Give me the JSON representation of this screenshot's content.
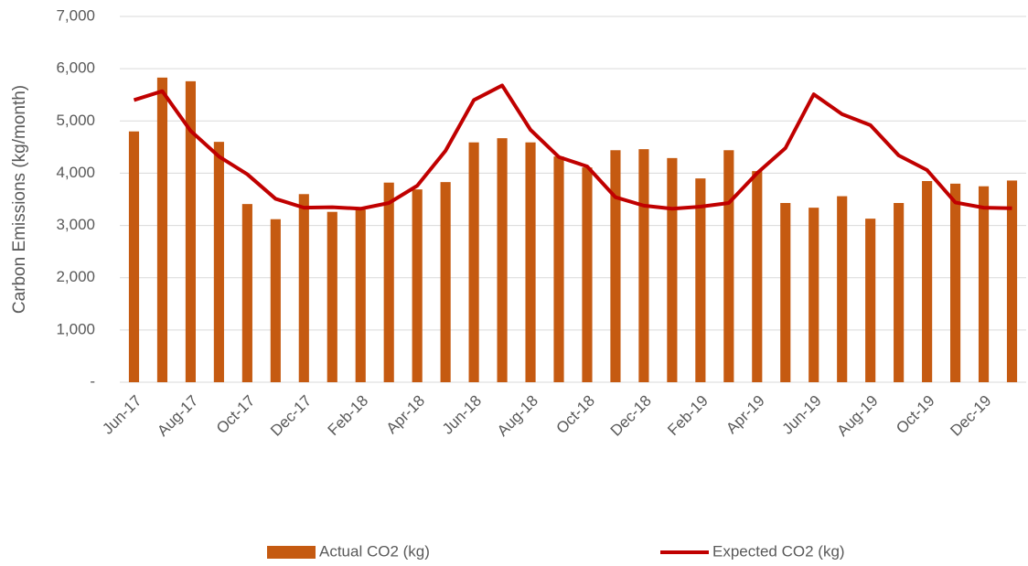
{
  "chart_data": {
    "type": "bar_line",
    "y_axis_label": "Carbon Emissions (kg/month)",
    "categories": [
      "Jun-17",
      null,
      "Aug-17",
      null,
      "Oct-17",
      null,
      "Dec-17",
      null,
      "Feb-18",
      null,
      "Apr-18",
      null,
      "Jun-18",
      null,
      "Aug-18",
      null,
      "Oct-18",
      null,
      "Dec-18",
      null,
      "Feb-19",
      null,
      "Apr-19",
      null,
      "Jun-19",
      null,
      "Aug-19",
      null,
      "Oct-19",
      null,
      "Dec-19",
      null
    ],
    "series": [
      {
        "name": "Actual CO2 (kg)",
        "type": "bar",
        "color": "#c55a11",
        "values": [
          4800,
          5830,
          5760,
          4600,
          3410,
          3120,
          3600,
          3260,
          3300,
          3820,
          3690,
          3830,
          4590,
          4670,
          4590,
          4320,
          4110,
          4440,
          4460,
          4290,
          3900,
          4440,
          4040,
          3430,
          3340,
          3560,
          3130,
          3430,
          3850,
          3800,
          3750,
          3860
        ]
      },
      {
        "name": "Expected CO2 (kg)",
        "type": "line",
        "color": "#c00000",
        "values": [
          5400,
          5570,
          4810,
          4320,
          3980,
          3510,
          3340,
          3350,
          3320,
          3430,
          3760,
          4430,
          5400,
          5680,
          4830,
          4310,
          4130,
          3540,
          3380,
          3320,
          3360,
          3430,
          4000,
          4480,
          5510,
          5130,
          4920,
          4340,
          4060,
          3440,
          3340,
          3330
        ]
      }
    ],
    "ylim": [
      0,
      7000
    ],
    "yticks": [
      {
        "value": 0,
        "label": "-"
      },
      {
        "value": 1000,
        "label": "1,000"
      },
      {
        "value": 2000,
        "label": "2,000"
      },
      {
        "value": 3000,
        "label": "3,000"
      },
      {
        "value": 4000,
        "label": "4,000"
      },
      {
        "value": 5000,
        "label": "5,000"
      },
      {
        "value": 6000,
        "label": "6,000"
      },
      {
        "value": 7000,
        "label": "7,000"
      }
    ],
    "grid": true,
    "legend": "bottom"
  }
}
